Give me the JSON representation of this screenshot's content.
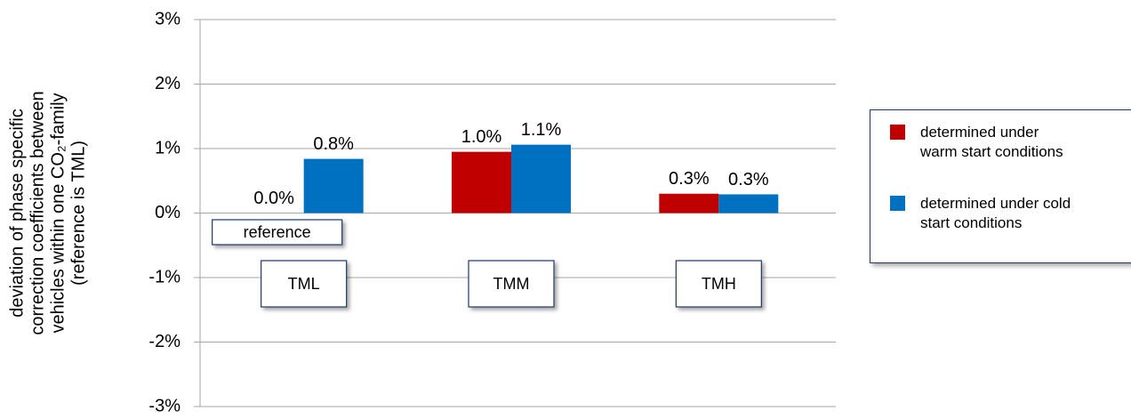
{
  "chart_data": {
    "type": "bar",
    "ylabel": [
      "deviation of phase specific",
      "correction coefficients between",
      "vehicles within one CO₂-family",
      "(reference is TML)"
    ],
    "categories": [
      "TML",
      "TMM",
      "TMH"
    ],
    "series": [
      {
        "name": "determined under warm start conditions",
        "color": "#c00000",
        "values": [
          0.0,
          0.95,
          0.3
        ],
        "value_labels": [
          "0.0%",
          "1.0%",
          "0.3%"
        ]
      },
      {
        "name": "determined under cold start conditions",
        "color": "#0070c0",
        "values": [
          0.84,
          1.06,
          0.29
        ],
        "value_labels": [
          "0.8%",
          "1.1%",
          "0.3%"
        ]
      }
    ],
    "annotation": "reference",
    "ylim": [
      -3,
      3
    ],
    "yticks": [
      {
        "value": -3,
        "label": "-3%"
      },
      {
        "value": -2,
        "label": "-2%"
      },
      {
        "value": -1,
        "label": "-1%"
      },
      {
        "value": 0,
        "label": "0%"
      },
      {
        "value": 1,
        "label": "1%"
      },
      {
        "value": 2,
        "label": "2%"
      },
      {
        "value": 3,
        "label": "3%"
      }
    ],
    "grid": true
  }
}
